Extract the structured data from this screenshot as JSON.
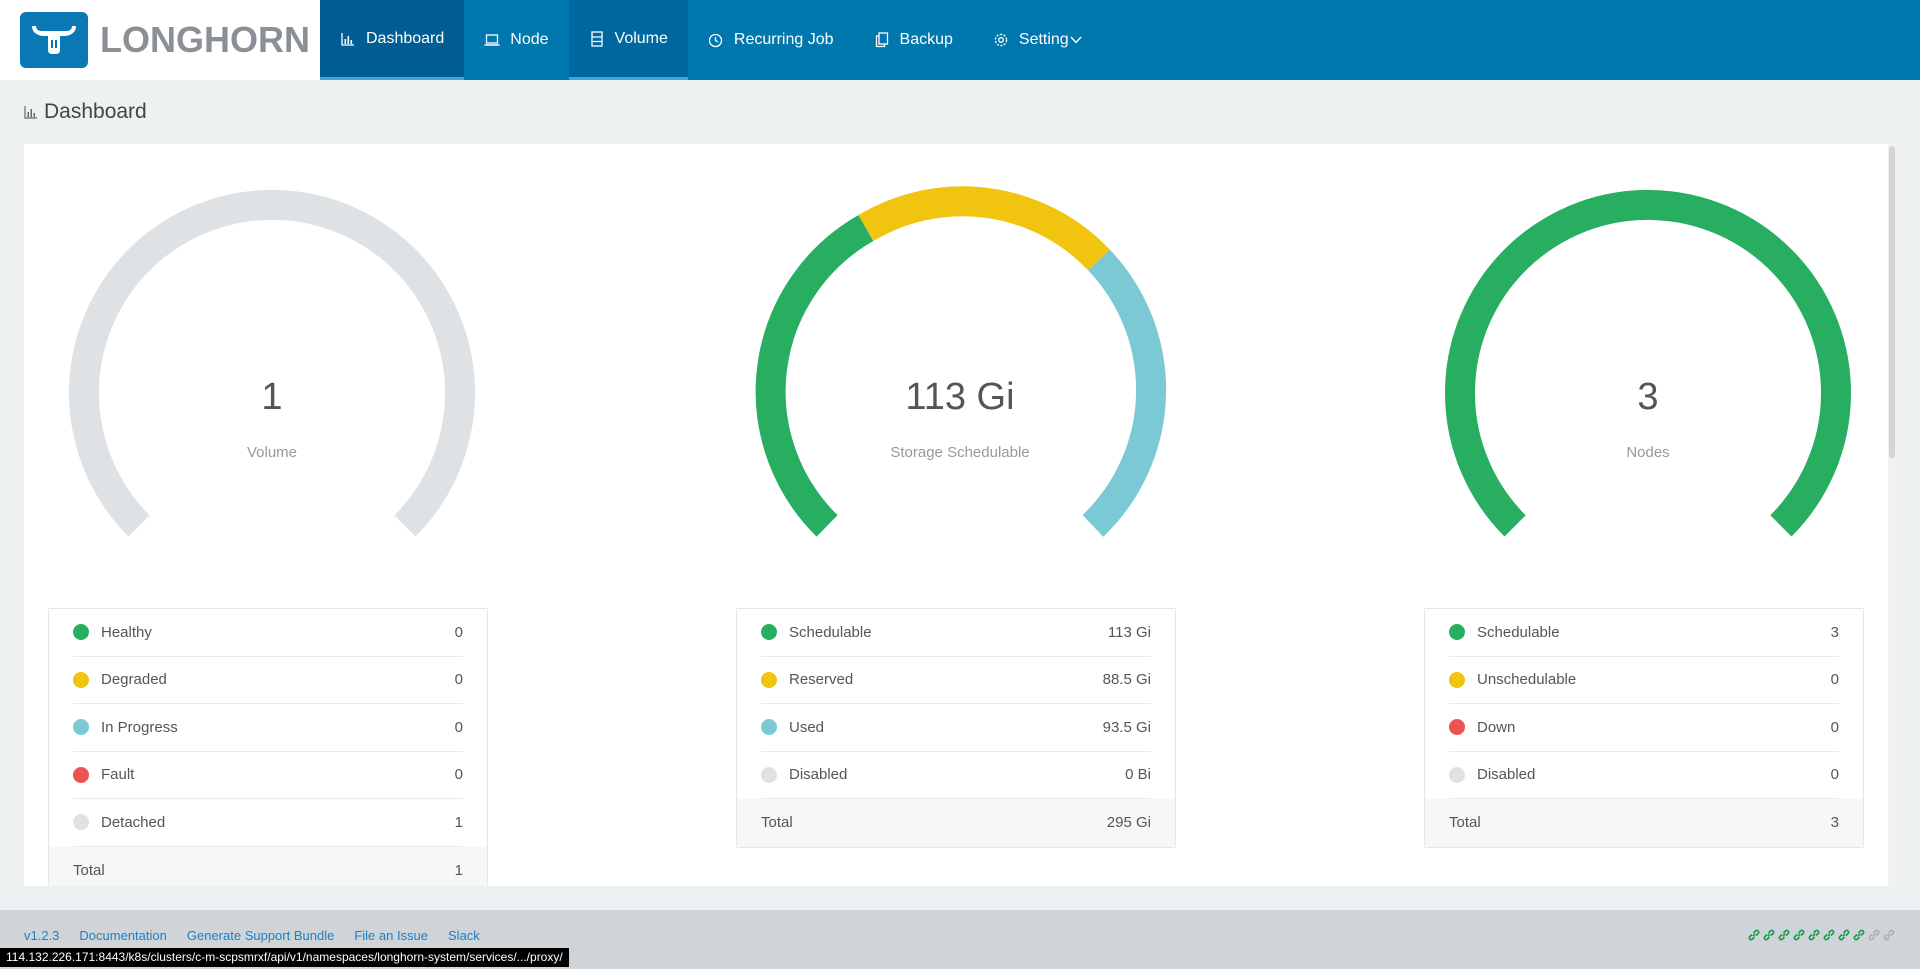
{
  "header": {
    "logo_text": "LONGHORN",
    "nav": [
      {
        "label": "Dashboard",
        "icon": "bar-chart-icon"
      },
      {
        "label": "Node",
        "icon": "laptop-icon"
      },
      {
        "label": "Volume",
        "icon": "database-icon"
      },
      {
        "label": "Recurring Job",
        "icon": "clock-icon"
      },
      {
        "label": "Backup",
        "icon": "copy-icon"
      },
      {
        "label": "Setting",
        "icon": "gear-icon",
        "dropdown": "chevron-down-icon"
      }
    ],
    "active": "Dashboard"
  },
  "page": {
    "title": "Dashboard"
  },
  "colors": {
    "healthy": "#27ae60",
    "degraded": "#f1c40f",
    "in_progress": "#7ac9d4",
    "fault": "#ef5350",
    "detached": "#dfe2e5",
    "header": "#0077ad"
  },
  "volume": {
    "value": "1",
    "label": "Volume",
    "rows": [
      {
        "label": "Healthy",
        "value": "0",
        "color": "#27ae60"
      },
      {
        "label": "Degraded",
        "value": "0",
        "color": "#f1c40f"
      },
      {
        "label": "In Progress",
        "value": "0",
        "color": "#7ac9d4"
      },
      {
        "label": "Fault",
        "value": "0",
        "color": "#ef5350"
      },
      {
        "label": "Detached",
        "value": "1",
        "color": "#dfe2e5"
      }
    ],
    "total_label": "Total",
    "total": "1"
  },
  "storage": {
    "value": "113 Gi",
    "label": "Storage Schedulable",
    "rows": [
      {
        "label": "Schedulable",
        "value": "113 Gi",
        "color": "#27ae60"
      },
      {
        "label": "Reserved",
        "value": "88.5 Gi",
        "color": "#f1c40f"
      },
      {
        "label": "Used",
        "value": "93.5 Gi",
        "color": "#7ac9d4"
      },
      {
        "label": "Disabled",
        "value": "0 Bi",
        "color": "#dfe2e5"
      }
    ],
    "total_label": "Total",
    "total": "295 Gi"
  },
  "nodes": {
    "value": "3",
    "label": "Nodes",
    "rows": [
      {
        "label": "Schedulable",
        "value": "3",
        "color": "#27ae60"
      },
      {
        "label": "Unschedulable",
        "value": "0",
        "color": "#f1c40f"
      },
      {
        "label": "Down",
        "value": "0",
        "color": "#ef5350"
      },
      {
        "label": "Disabled",
        "value": "0",
        "color": "#dfe2e5"
      }
    ],
    "total_label": "Total",
    "total": "3"
  },
  "footer": {
    "links": [
      "v1.2.3",
      "Documentation",
      "Generate Support Bundle",
      "File an Issue",
      "Slack"
    ],
    "link_icons": {
      "active": 8,
      "inactive": 2,
      "active_color": "#1a9a4a",
      "inactive_color": "#a9b0b5"
    }
  },
  "status_bar": {
    "url": "114.132.226.171:8443/k8s/clusters/c-m-scpsmrxf/api/v1/namespaces/longhorn-system/services/.../proxy/"
  }
}
